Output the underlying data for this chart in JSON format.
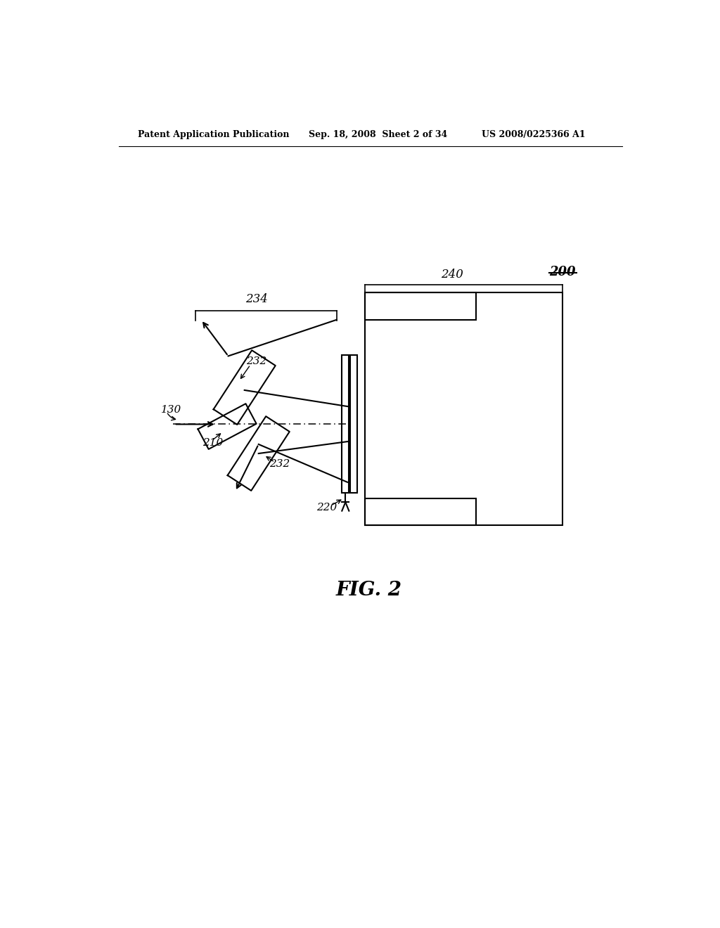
{
  "bg_color": "#ffffff",
  "line_color": "#000000",
  "header_left": "Patent Application Publication",
  "header_mid": "Sep. 18, 2008  Sheet 2 of 34",
  "header_right": "US 2008/0225366 A1",
  "fig_label": "FIG. 2",
  "label_200": "200",
  "label_234": "234",
  "label_240": "240",
  "label_232a": "232",
  "label_232b": "232",
  "label_210": "210",
  "label_220": "220",
  "label_130": "130"
}
